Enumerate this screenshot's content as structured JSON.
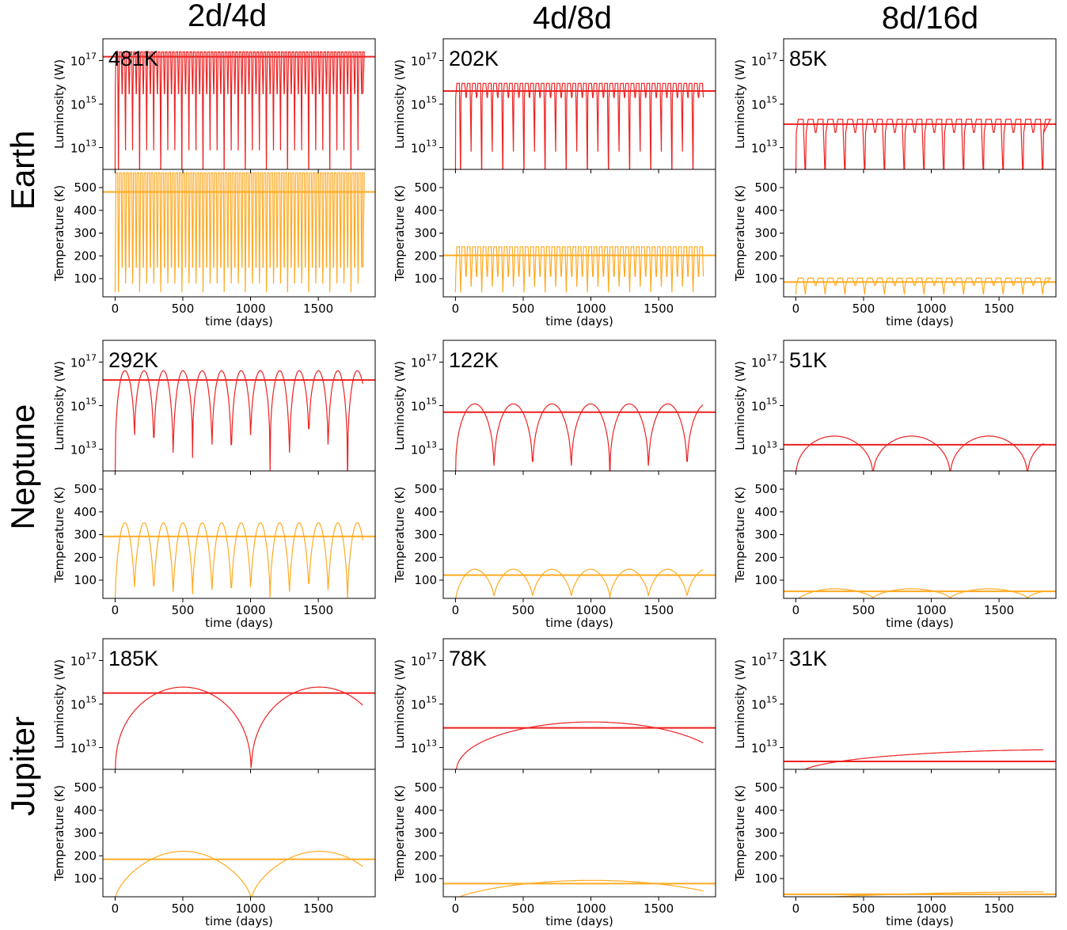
{
  "figure": {
    "column_titles": [
      "2d/4d",
      "4d/8d",
      "8d/16d"
    ],
    "row_titles": [
      "Earth",
      "Neptune",
      "Jupiter"
    ]
  },
  "colors": {
    "luminosity": "#ee2222",
    "temperature": "#ffaa22"
  },
  "chart_data": [
    {
      "type": "line",
      "planet": "Earth",
      "config": "2d/4d",
      "annotation": "481K",
      "luminosity": {
        "ylabel": "Luminosity (W)",
        "yscale": "log",
        "yticks": [
          "10^17",
          "10^15",
          "10^13"
        ],
        "curve": {
          "style": "rapid",
          "period_days": 26,
          "peak_W": 2.5e+17,
          "trough_W": 3000000000000000.0,
          "min_W": 300000000000.0,
          "dip_every": 2,
          "deep_dip_every": 6
        },
        "mean_W": 1.5e+17
      },
      "temperature": {
        "ylabel": "Temperature (K)",
        "ylim": [
          20,
          580
        ],
        "yticks": [
          100,
          200,
          300,
          400,
          500
        ],
        "curve": {
          "style": "rapid",
          "period_days": 26,
          "peak_K": 565,
          "trough_K": 150,
          "min_K": 40,
          "dip_every": 2,
          "deep_dip_every": 6
        },
        "mean_K": 481
      },
      "xlabel": "time (days)",
      "xlim": [
        -90,
        1920
      ],
      "xticks": [
        0,
        500,
        1000,
        1500
      ]
    },
    {
      "type": "line",
      "planet": "Earth",
      "config": "4d/8d",
      "annotation": "202K",
      "luminosity": {
        "ylabel": "Luminosity (W)",
        "yscale": "log",
        "yticks": [
          "10^17",
          "10^15",
          "10^13"
        ],
        "curve": {
          "style": "rapid",
          "period_days": 39,
          "peak_W": 9000000000000000.0,
          "trough_W": 2000000000000000.0,
          "min_W": 300000000000.0,
          "dip_every": 2,
          "deep_dip_every": 4
        },
        "mean_W": 4000000000000000.0
      },
      "temperature": {
        "ylabel": "Temperature (K)",
        "ylim": [
          20,
          580
        ],
        "yticks": [
          100,
          200,
          300,
          400,
          500
        ],
        "curve": {
          "style": "rapid",
          "period_days": 39,
          "peak_K": 240,
          "trough_K": 110,
          "min_K": 40,
          "dip_every": 2,
          "deep_dip_every": 4
        },
        "mean_K": 202
      },
      "xlabel": "time (days)",
      "xlim": [
        -90,
        1920
      ],
      "xticks": [
        0,
        500,
        1000,
        1500
      ]
    },
    {
      "type": "line",
      "planet": "Earth",
      "config": "8d/16d",
      "annotation": "85K",
      "luminosity": {
        "ylabel": "Luminosity (W)",
        "yscale": "log",
        "yticks": [
          "10^17",
          "10^15",
          "10^13"
        ],
        "curve": {
          "style": "rapid",
          "period_days": 73,
          "peak_W": 200000000000000.0,
          "trough_W": 50000000000000.0,
          "min_W": 300000000000.0,
          "dip_every": 2,
          "deep_dip_every": 2
        },
        "mean_W": 120000000000000.0
      },
      "temperature": {
        "ylabel": "Temperature (K)",
        "ylim": [
          20,
          580
        ],
        "yticks": [
          100,
          200,
          300,
          400,
          500
        ],
        "curve": {
          "style": "rapid",
          "period_days": 73,
          "peak_K": 102,
          "trough_K": 70,
          "min_K": 30,
          "dip_every": 2,
          "deep_dip_every": 2
        },
        "mean_K": 85
      },
      "xlabel": "time (days)",
      "xlim": [
        -90,
        1920
      ],
      "xticks": [
        0,
        500,
        1000,
        1500
      ]
    },
    {
      "type": "line",
      "planet": "Neptune",
      "config": "2d/4d",
      "annotation": "292K",
      "luminosity": {
        "ylabel": "Luminosity (W)",
        "yscale": "log",
        "yticks": [
          "10^17",
          "10^15",
          "10^13"
        ],
        "curve": {
          "style": "arch",
          "period_days": 143,
          "peak_W": 4e+16,
          "min_W": 300000000000.0,
          "dip_logs": [
            12.6,
            12.0,
            11.5
          ]
        },
        "mean_W": 1.5e+16
      },
      "temperature": {
        "ylabel": "Temperature (K)",
        "ylim": [
          20,
          580
        ],
        "yticks": [
          100,
          200,
          300,
          400,
          500
        ],
        "curve": {
          "style": "arch",
          "period_days": 143,
          "peak_K": 352,
          "min_K": 5,
          "dip_K": [
            38,
            25,
            15
          ]
        },
        "mean_K": 292
      },
      "xlabel": "time (days)",
      "xlim": [
        -90,
        1920
      ],
      "xticks": [
        0,
        500,
        1000,
        1500
      ]
    },
    {
      "type": "line",
      "planet": "Neptune",
      "config": "4d/8d",
      "annotation": "122K",
      "luminosity": {
        "ylabel": "Luminosity (W)",
        "yscale": "log",
        "yticks": [
          "10^17",
          "10^15",
          "10^13"
        ],
        "curve": {
          "style": "arch",
          "period_days": 285,
          "peak_W": 1200000000000000.0,
          "min_W": 300000000000.0,
          "dip_logs": [
            11.5
          ]
        },
        "mean_W": 500000000000000.0
      },
      "temperature": {
        "ylabel": "Temperature (K)",
        "ylim": [
          20,
          580
        ],
        "yticks": [
          100,
          200,
          300,
          400,
          500
        ],
        "curve": {
          "style": "arch",
          "period_days": 285,
          "peak_K": 148,
          "min_K": 5,
          "dip_K": [
            22
          ]
        },
        "mean_K": 122
      },
      "xlabel": "time (days)",
      "xlim": [
        -90,
        1920
      ],
      "xticks": [
        0,
        500,
        1000,
        1500
      ]
    },
    {
      "type": "line",
      "planet": "Neptune",
      "config": "8d/16d",
      "annotation": "51K",
      "luminosity": {
        "ylabel": "Luminosity (W)",
        "yscale": "log",
        "yticks": [
          "10^17",
          "10^15",
          "10^13"
        ],
        "curve": {
          "style": "arch",
          "period_days": 570,
          "peak_W": 40000000000000.0,
          "min_W": 300000000000.0,
          "dip_logs": [
            11.5
          ]
        },
        "mean_W": 16000000000000.0
      },
      "temperature": {
        "ylabel": "Temperature (K)",
        "ylim": [
          20,
          580
        ],
        "yticks": [
          100,
          200,
          300,
          400,
          500
        ],
        "curve": {
          "style": "arch",
          "period_days": 570,
          "peak_K": 62,
          "min_K": 5,
          "dip_K": [
            20
          ]
        },
        "mean_K": 51
      },
      "xlabel": "time (days)",
      "xlim": [
        -90,
        1920
      ],
      "xticks": [
        0,
        500,
        1000,
        1500
      ]
    },
    {
      "type": "line",
      "planet": "Jupiter",
      "config": "2d/4d",
      "annotation": "185K",
      "luminosity": {
        "ylabel": "Luminosity (W)",
        "yscale": "log",
        "yticks": [
          "10^17",
          "10^15",
          "10^13"
        ],
        "curve": {
          "style": "arch",
          "period_days": 1005,
          "peak_W": 6000000000000000.0,
          "min_W": 300000000000.0,
          "dip_logs": [
            11.5
          ]
        },
        "mean_W": 3200000000000000.0
      },
      "temperature": {
        "ylabel": "Temperature (K)",
        "ylim": [
          20,
          580
        ],
        "yticks": [
          100,
          200,
          300,
          400,
          500
        ],
        "curve": {
          "style": "arch",
          "period_days": 1005,
          "peak_K": 220,
          "min_K": 5,
          "dip_K": [
            5
          ]
        },
        "mean_K": 185
      },
      "xlabel": "time (days)",
      "xlim": [
        -90,
        1920
      ],
      "xticks": [
        0,
        500,
        1000,
        1500
      ]
    },
    {
      "type": "line",
      "planet": "Jupiter",
      "config": "4d/8d",
      "annotation": "78K",
      "luminosity": {
        "ylabel": "Luminosity (W)",
        "yscale": "log",
        "yticks": [
          "10^17",
          "10^15",
          "10^13"
        ],
        "curve": {
          "style": "arch",
          "period_days": 2010,
          "peak_W": 150000000000000.0,
          "min_W": 300000000000.0,
          "dip_logs": [
            11.5
          ]
        },
        "mean_W": 80000000000000.0
      },
      "temperature": {
        "ylabel": "Temperature (K)",
        "ylim": [
          20,
          580
        ],
        "yticks": [
          100,
          200,
          300,
          400,
          500
        ],
        "curve": {
          "style": "arch",
          "period_days": 2010,
          "peak_K": 92,
          "min_K": 5,
          "dip_K": [
            5
          ]
        },
        "mean_K": 78
      },
      "xlabel": "time (days)",
      "xlim": [
        -90,
        1920
      ],
      "xticks": [
        0,
        500,
        1000,
        1500
      ]
    },
    {
      "type": "line",
      "planet": "Jupiter",
      "config": "8d/16d",
      "annotation": "31K",
      "luminosity": {
        "ylabel": "Luminosity (W)",
        "yscale": "log",
        "yticks": [
          "10^17",
          "10^15",
          "10^13"
        ],
        "curve": {
          "style": "arch",
          "period_days": 4020,
          "peak_W": 8000000000000.0,
          "min_W": 300000000000.0,
          "dip_logs": [
            11.5
          ]
        },
        "mean_W": 2300000000000.0
      },
      "temperature": {
        "ylabel": "Temperature (K)",
        "ylim": [
          20,
          580
        ],
        "yticks": [
          100,
          200,
          300,
          400,
          500
        ],
        "curve": {
          "style": "arch",
          "period_days": 4020,
          "peak_K": 42,
          "min_K": 5,
          "dip_K": [
            5
          ]
        },
        "mean_K": 31
      },
      "xlabel": "time (days)",
      "xlim": [
        -90,
        1920
      ],
      "xticks": [
        0,
        500,
        1000,
        1500
      ]
    }
  ]
}
